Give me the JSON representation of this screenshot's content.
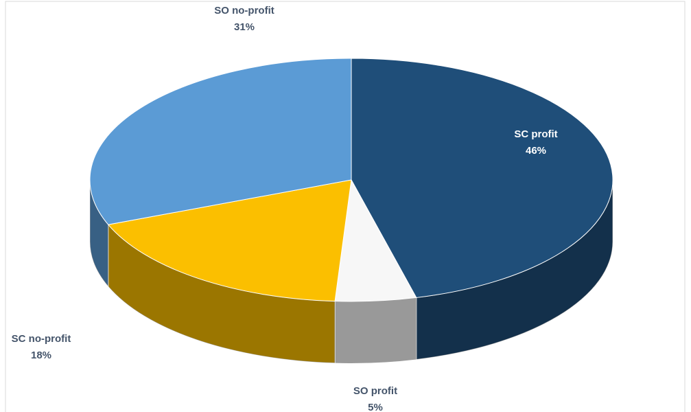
{
  "chart_data": {
    "type": "pie3d",
    "categories": [
      "SC profit",
      "SO profit",
      "SC no-profit",
      "SO no-profit"
    ],
    "values": [
      46,
      5,
      18,
      31
    ],
    "value_labels": [
      "46%",
      "5%",
      "18%",
      "31%"
    ],
    "colors": [
      "#1f4e79",
      "#f7f7f7",
      "#fbbf00",
      "#5b9bd5"
    ]
  }
}
